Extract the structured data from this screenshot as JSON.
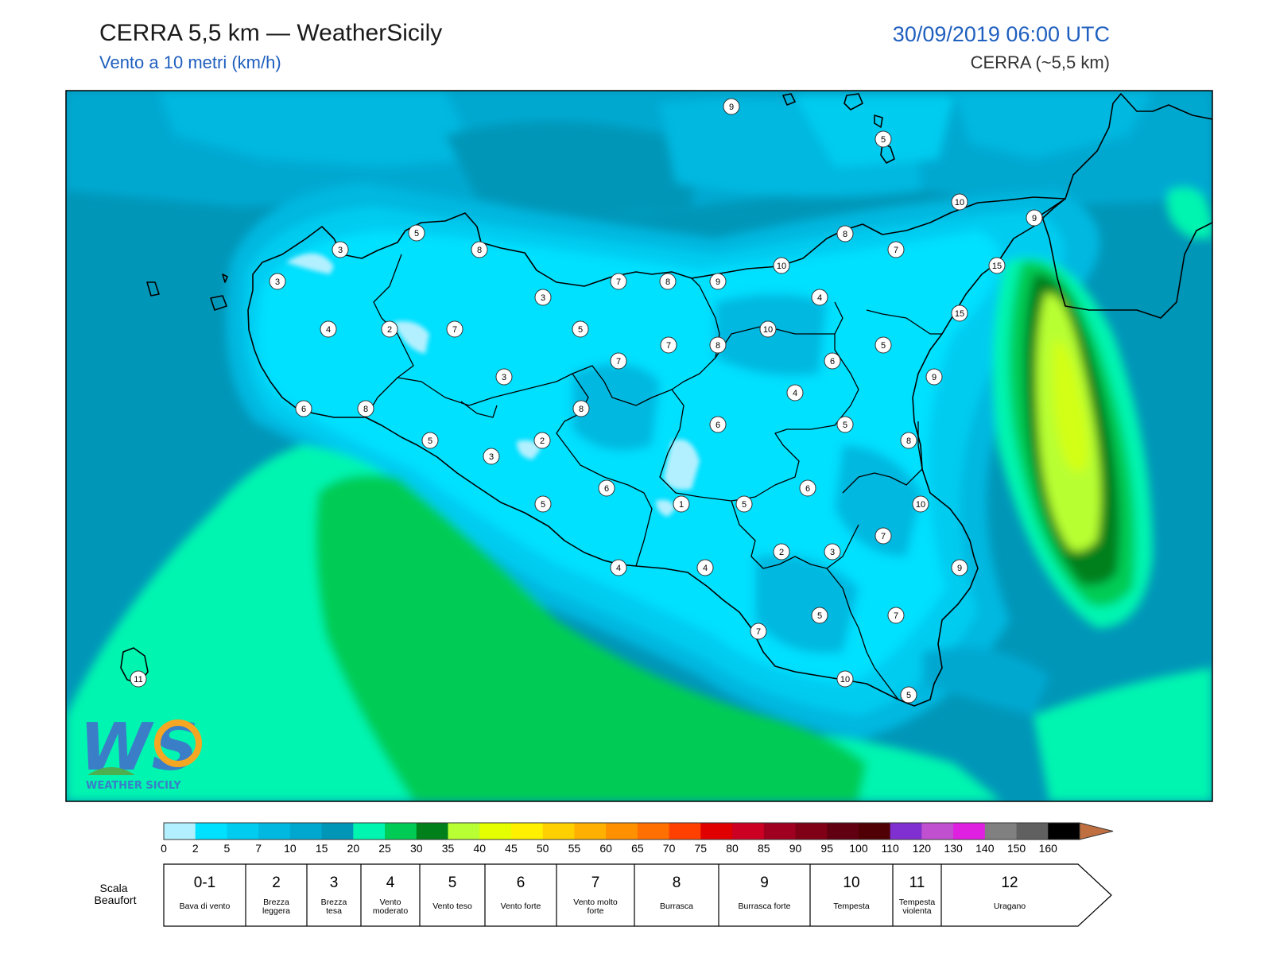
{
  "header": {
    "title": "CERRA 5,5 km — WeatherSicily",
    "subtitle": "Vento a 10 metri (km/h)",
    "datetime": "30/09/2019 06:00 UTC",
    "model": "CERRA (~5,5 km)"
  },
  "logo": {
    "text": "WS",
    "name": "WEATHER SICILY"
  },
  "station_values": [
    9,
    5,
    10,
    9,
    5,
    8,
    3,
    15,
    3,
    7,
    8,
    9,
    10,
    8,
    7,
    3,
    4,
    15,
    4,
    2,
    7,
    5,
    10,
    5,
    9,
    8,
    7,
    7,
    6,
    3,
    4,
    6,
    5,
    6,
    8,
    8,
    8,
    2,
    5,
    3,
    6,
    6,
    10,
    1,
    5,
    5,
    7,
    2,
    3,
    4,
    4,
    9,
    7,
    5,
    7,
    10,
    11,
    5
  ],
  "colorbar": {
    "ticks": [
      "0",
      "2",
      "5",
      "7",
      "10",
      "15",
      "20",
      "25",
      "30",
      "35",
      "40",
      "45",
      "50",
      "55",
      "60",
      "65",
      "70",
      "75",
      "80",
      "85",
      "90",
      "95",
      "100",
      "110",
      "120",
      "130",
      "140",
      "150",
      "160"
    ],
    "colors": [
      "#b3f0ff",
      "#00e0ff",
      "#00ccf0",
      "#00b8e0",
      "#00a8d0",
      "#0096b8",
      "#00f5b0",
      "#00cc55",
      "#00801a",
      "#b8ff33",
      "#e5ff00",
      "#fff000",
      "#ffd000",
      "#ffb000",
      "#ff9000",
      "#ff7000",
      "#ff4000",
      "#e00000",
      "#cc0022",
      "#a00020",
      "#800015",
      "#600010",
      "#500005",
      "#8030d0",
      "#c050d0",
      "#e020e0",
      "#808080",
      "#606060",
      "#000000",
      "#804020",
      "#c07040"
    ]
  },
  "beaufort": {
    "title": "Scala Beaufort",
    "cells": [
      {
        "num": "0-1",
        "desc": "Bava di vento"
      },
      {
        "num": "2",
        "desc": "Brezza leggera"
      },
      {
        "num": "3",
        "desc": "Brezza tesa"
      },
      {
        "num": "4",
        "desc": "Vento moderato"
      },
      {
        "num": "5",
        "desc": "Vento teso"
      },
      {
        "num": "6",
        "desc": "Vento forte"
      },
      {
        "num": "7",
        "desc": "Vento molto forte"
      },
      {
        "num": "8",
        "desc": "Burrasca"
      },
      {
        "num": "9",
        "desc": "Burrasca forte"
      },
      {
        "num": "10",
        "desc": "Tempesta"
      },
      {
        "num": "11",
        "desc": "Tempesta violenta"
      },
      {
        "num": "12",
        "desc": "Uragano"
      }
    ]
  }
}
